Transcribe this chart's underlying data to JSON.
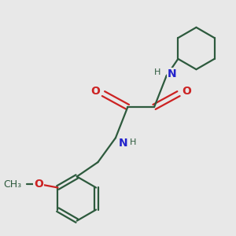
{
  "background_color": "#e8e8e8",
  "bond_color": "#2d5a3d",
  "nitrogen_color": "#2222cc",
  "oxygen_color": "#cc2222",
  "line_width": 1.6,
  "figsize": [
    3.0,
    3.0
  ],
  "dpi": 100,
  "xlim": [
    0,
    10
  ],
  "ylim": [
    0,
    10
  ]
}
